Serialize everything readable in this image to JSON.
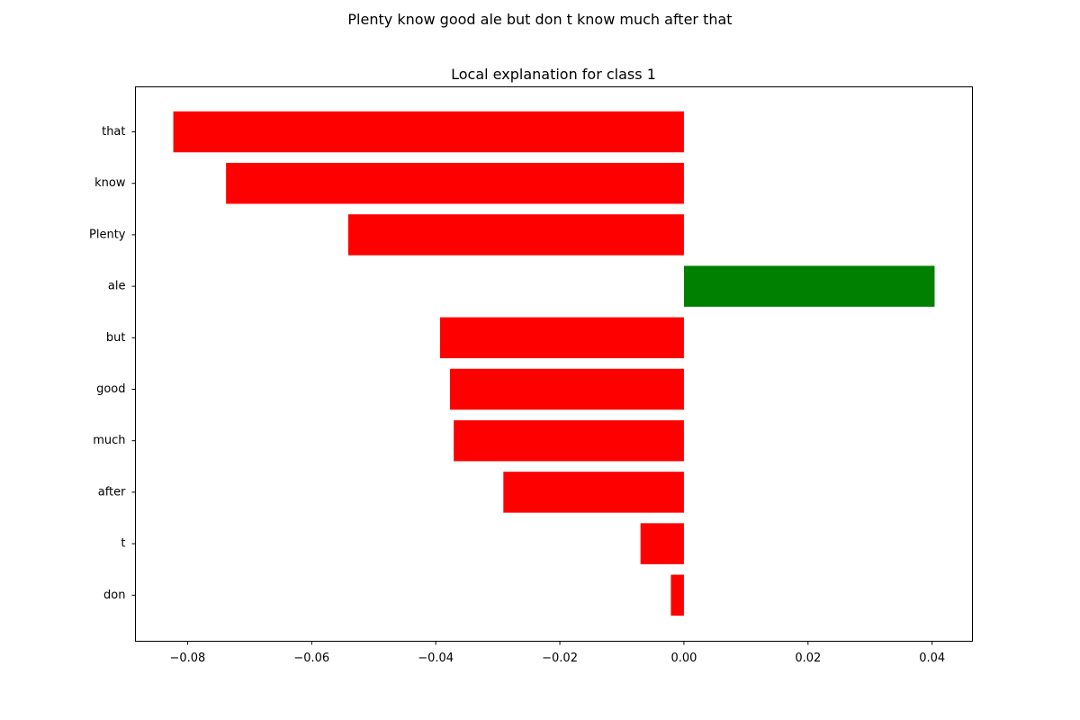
{
  "figure": {
    "suptitle": "Plenty know good ale but don t know much after that"
  },
  "colors": {
    "negative": "#ff0000",
    "positive": "#008000"
  },
  "chart_data": {
    "type": "bar",
    "orientation": "horizontal",
    "title": "Local explanation for class 1",
    "xlabel": "",
    "ylabel": "",
    "categories": [
      "that",
      "know",
      "Plenty",
      "ale",
      "but",
      "good",
      "much",
      "after",
      "t",
      "don"
    ],
    "values": [
      -0.0823,
      -0.0738,
      -0.0541,
      0.0404,
      -0.0393,
      -0.0377,
      -0.0371,
      -0.0291,
      -0.007,
      -0.0021
    ],
    "xlim": [
      -0.0884,
      0.0465
    ],
    "xticks": [
      -0.08,
      -0.06,
      -0.04,
      -0.02,
      0.0,
      0.02,
      0.04
    ],
    "xtick_labels": [
      "−0.08",
      "−0.06",
      "−0.04",
      "−0.02",
      "0.00",
      "0.02",
      "0.04"
    ],
    "grid": false,
    "legend": "none"
  }
}
